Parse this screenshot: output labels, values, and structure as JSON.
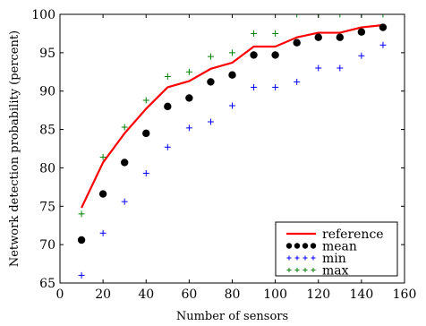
{
  "chart_data": {
    "type": "line",
    "title": "",
    "xlabel": "Number of sensors",
    "ylabel": "Network detection probability (percent)",
    "xlim": [
      0,
      160
    ],
    "ylim": [
      65,
      100
    ],
    "xticks": [
      0,
      20,
      40,
      60,
      80,
      100,
      120,
      140,
      160
    ],
    "yticks": [
      65,
      70,
      75,
      80,
      85,
      90,
      95,
      100
    ],
    "grid": false,
    "legend_position": "bottom-right",
    "x": [
      10,
      20,
      30,
      40,
      50,
      60,
      70,
      80,
      90,
      100,
      110,
      120,
      130,
      140,
      150
    ],
    "series": [
      {
        "name": "reference",
        "style": "line",
        "color": "#ff0000",
        "values": [
          74.8,
          80.7,
          84.5,
          87.7,
          90.5,
          91.3,
          92.9,
          93.7,
          95.8,
          95.8,
          97.0,
          97.6,
          97.6,
          98.3,
          98.6
        ]
      },
      {
        "name": "mean",
        "style": "dot",
        "color": "#000000",
        "values": [
          70.6,
          76.6,
          80.7,
          84.5,
          88.0,
          89.1,
          91.2,
          92.1,
          94.7,
          94.7,
          96.3,
          97.0,
          97.0,
          97.7,
          98.3
        ]
      },
      {
        "name": "min",
        "style": "plus",
        "color": "#0000ff",
        "values": [
          66.0,
          71.5,
          75.6,
          79.3,
          82.7,
          85.2,
          86.0,
          88.1,
          90.5,
          90.5,
          91.2,
          93.0,
          93.0,
          94.6,
          96.0
        ]
      },
      {
        "name": "max",
        "style": "plus",
        "color": "#008000",
        "values": [
          74.0,
          81.4,
          85.3,
          88.8,
          91.9,
          92.5,
          94.5,
          95.0,
          97.5,
          97.5,
          100.0,
          100.0,
          100.0,
          100.0,
          100.0
        ]
      }
    ]
  }
}
